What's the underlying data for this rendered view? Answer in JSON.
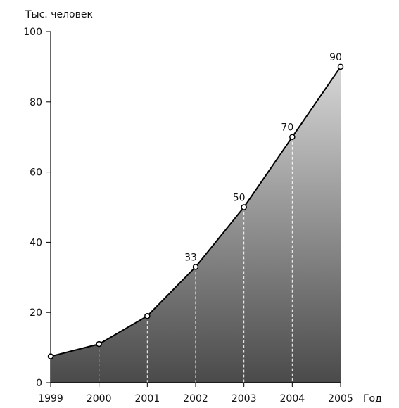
{
  "chart_data": {
    "type": "area",
    "ylabel": "Тыс. человек",
    "xlabel": "Год",
    "x": [
      1999,
      2000,
      2001,
      2002,
      2003,
      2004,
      2005
    ],
    "x_tick_labels": [
      "1999",
      "2000",
      "2001",
      "2002",
      "2003",
      "2004",
      "2005"
    ],
    "values": [
      7.5,
      11,
      19,
      33,
      50,
      70,
      90
    ],
    "data_labels": [
      "",
      "",
      "",
      "33",
      "50",
      "70",
      "90"
    ],
    "ylim": [
      0,
      100
    ],
    "y_ticks": [
      0,
      20,
      40,
      60,
      80,
      100
    ],
    "y_tick_labels": [
      "0",
      "20",
      "40",
      "60",
      "80",
      "100"
    ],
    "grid": false,
    "fill": "vertical gradient, dark gray at bottom to light gray at top",
    "colors": {
      "line": "#000000",
      "fill_top": "#d6d6d6",
      "fill_bottom": "#4a4a4a",
      "marker_fill": "#ffffff",
      "drop_line": "#ffffff"
    }
  }
}
